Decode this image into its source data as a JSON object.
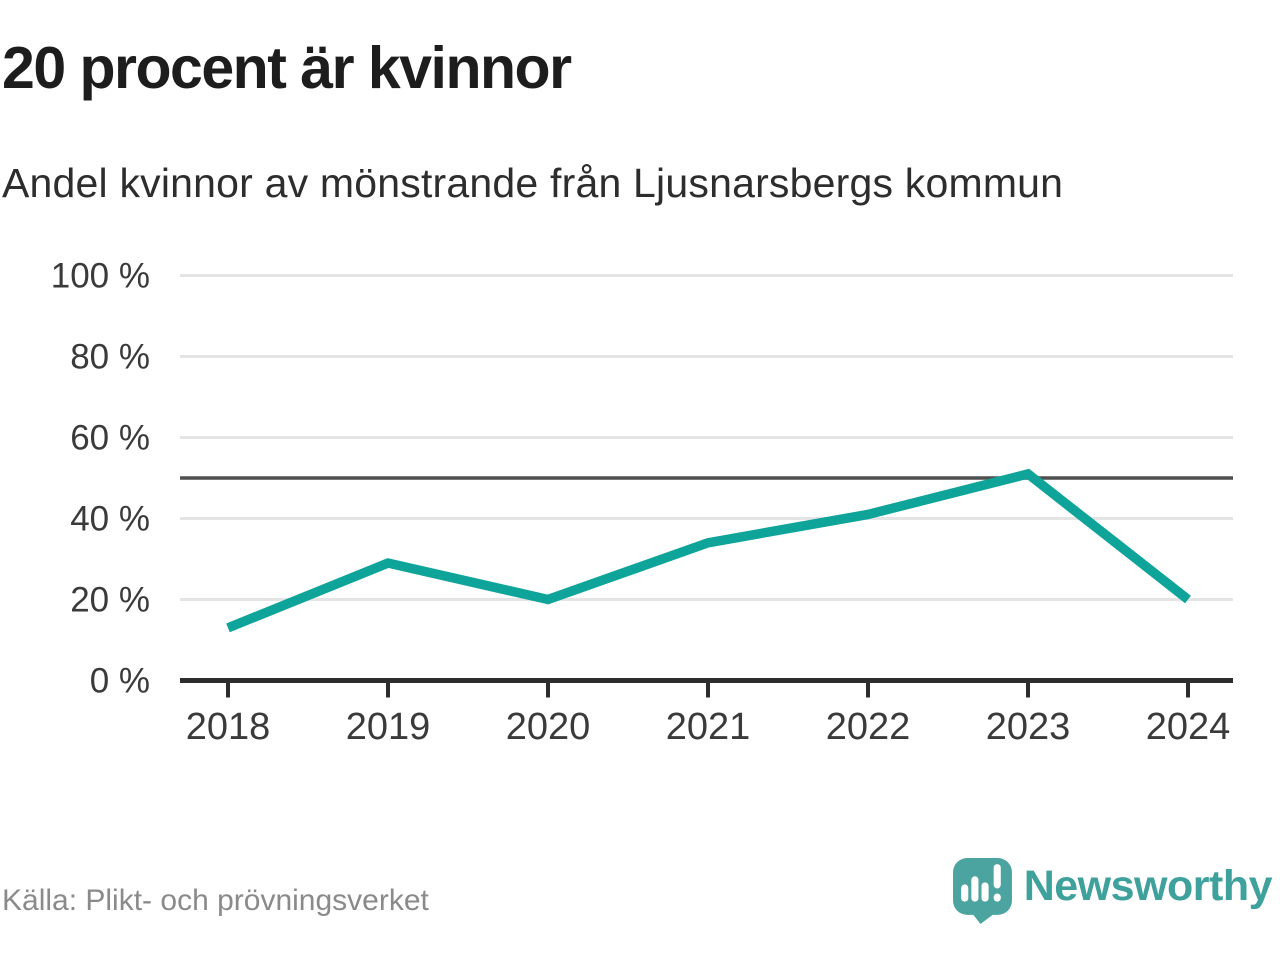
{
  "header": {
    "title": "20 procent är kvinnor",
    "subtitle": "Andel kvinnor av mönstrande från Ljusnarsbergs kommun"
  },
  "chart_data": {
    "type": "line",
    "x": [
      2018,
      2019,
      2020,
      2021,
      2022,
      2023,
      2024
    ],
    "values": [
      13,
      29,
      20,
      34,
      41,
      51,
      20
    ],
    "series_name": "Andel kvinnor",
    "title": "20 procent är kvinnor",
    "subtitle": "Andel kvinnor av mönstrande från Ljusnarsbergs kommun",
    "xlabel": "",
    "ylabel": "",
    "ylim": [
      0,
      100
    ],
    "yticks": [
      0,
      20,
      40,
      60,
      80,
      100
    ],
    "ytick_labels": [
      "0 %",
      "20 %",
      "40 %",
      "60 %",
      "80 %",
      "100 %"
    ],
    "xtick_labels": [
      "2018",
      "2019",
      "2020",
      "2021",
      "2022",
      "2023",
      "2024"
    ],
    "reference_line": 50,
    "grid": true,
    "legend": "none",
    "colors": {
      "line": "#0EA49A",
      "gridline": "#e4e4e4",
      "reference_line": "#4f4f4f",
      "axis": "#2d2d2d",
      "tick_label": "#3a3a3a"
    }
  },
  "footer": {
    "source": "Källa: Plikt- och prövningsverket",
    "brand": "Newsworthy",
    "brand_color": "#3FA19C",
    "logo_color": "#4BA49F",
    "logo_icon": "speech-bubble-bar-chart-exclamation"
  }
}
